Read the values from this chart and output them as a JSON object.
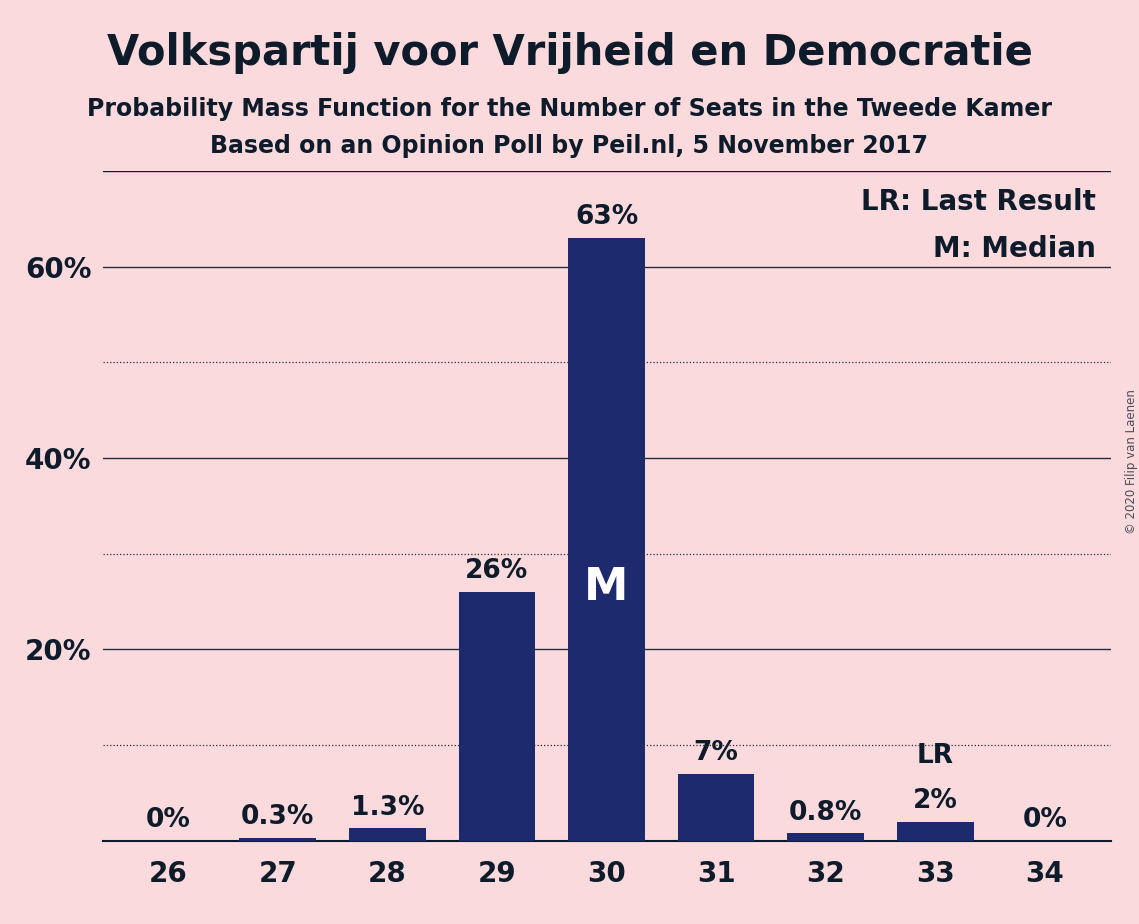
{
  "title": "Volkspartij voor Vrijheid en Democratie",
  "subtitle1": "Probability Mass Function for the Number of Seats in the Tweede Kamer",
  "subtitle2": "Based on an Opinion Poll by Peil.nl, 5 November 2017",
  "copyright": "© 2020 Filip van Laenen",
  "categories": [
    26,
    27,
    28,
    29,
    30,
    31,
    32,
    33,
    34
  ],
  "values": [
    0.0,
    0.3,
    1.3,
    26.0,
    63.0,
    7.0,
    0.8,
    2.0,
    0.0
  ],
  "labels": [
    "0%",
    "0.3%",
    "1.3%",
    "26%",
    "63%",
    "7%",
    "0.8%",
    "2%",
    "0%"
  ],
  "bar_color": "#1e2a6e",
  "background_color": "#fadadd",
  "median_seat": 30,
  "last_result_seat": 33,
  "legend_lr": "LR: Last Result",
  "legend_m": "M: Median",
  "ylim": [
    0,
    70
  ],
  "ytick_labels_major": [
    20,
    40,
    60
  ],
  "grid_solid": [
    20,
    40,
    60
  ],
  "grid_dotted": [
    10,
    30,
    50
  ],
  "title_fontsize": 30,
  "subtitle_fontsize": 17,
  "label_fontsize": 19,
  "tick_fontsize": 20,
  "legend_fontsize": 20,
  "median_fontsize": 32,
  "text_color": "#0d1b2a"
}
